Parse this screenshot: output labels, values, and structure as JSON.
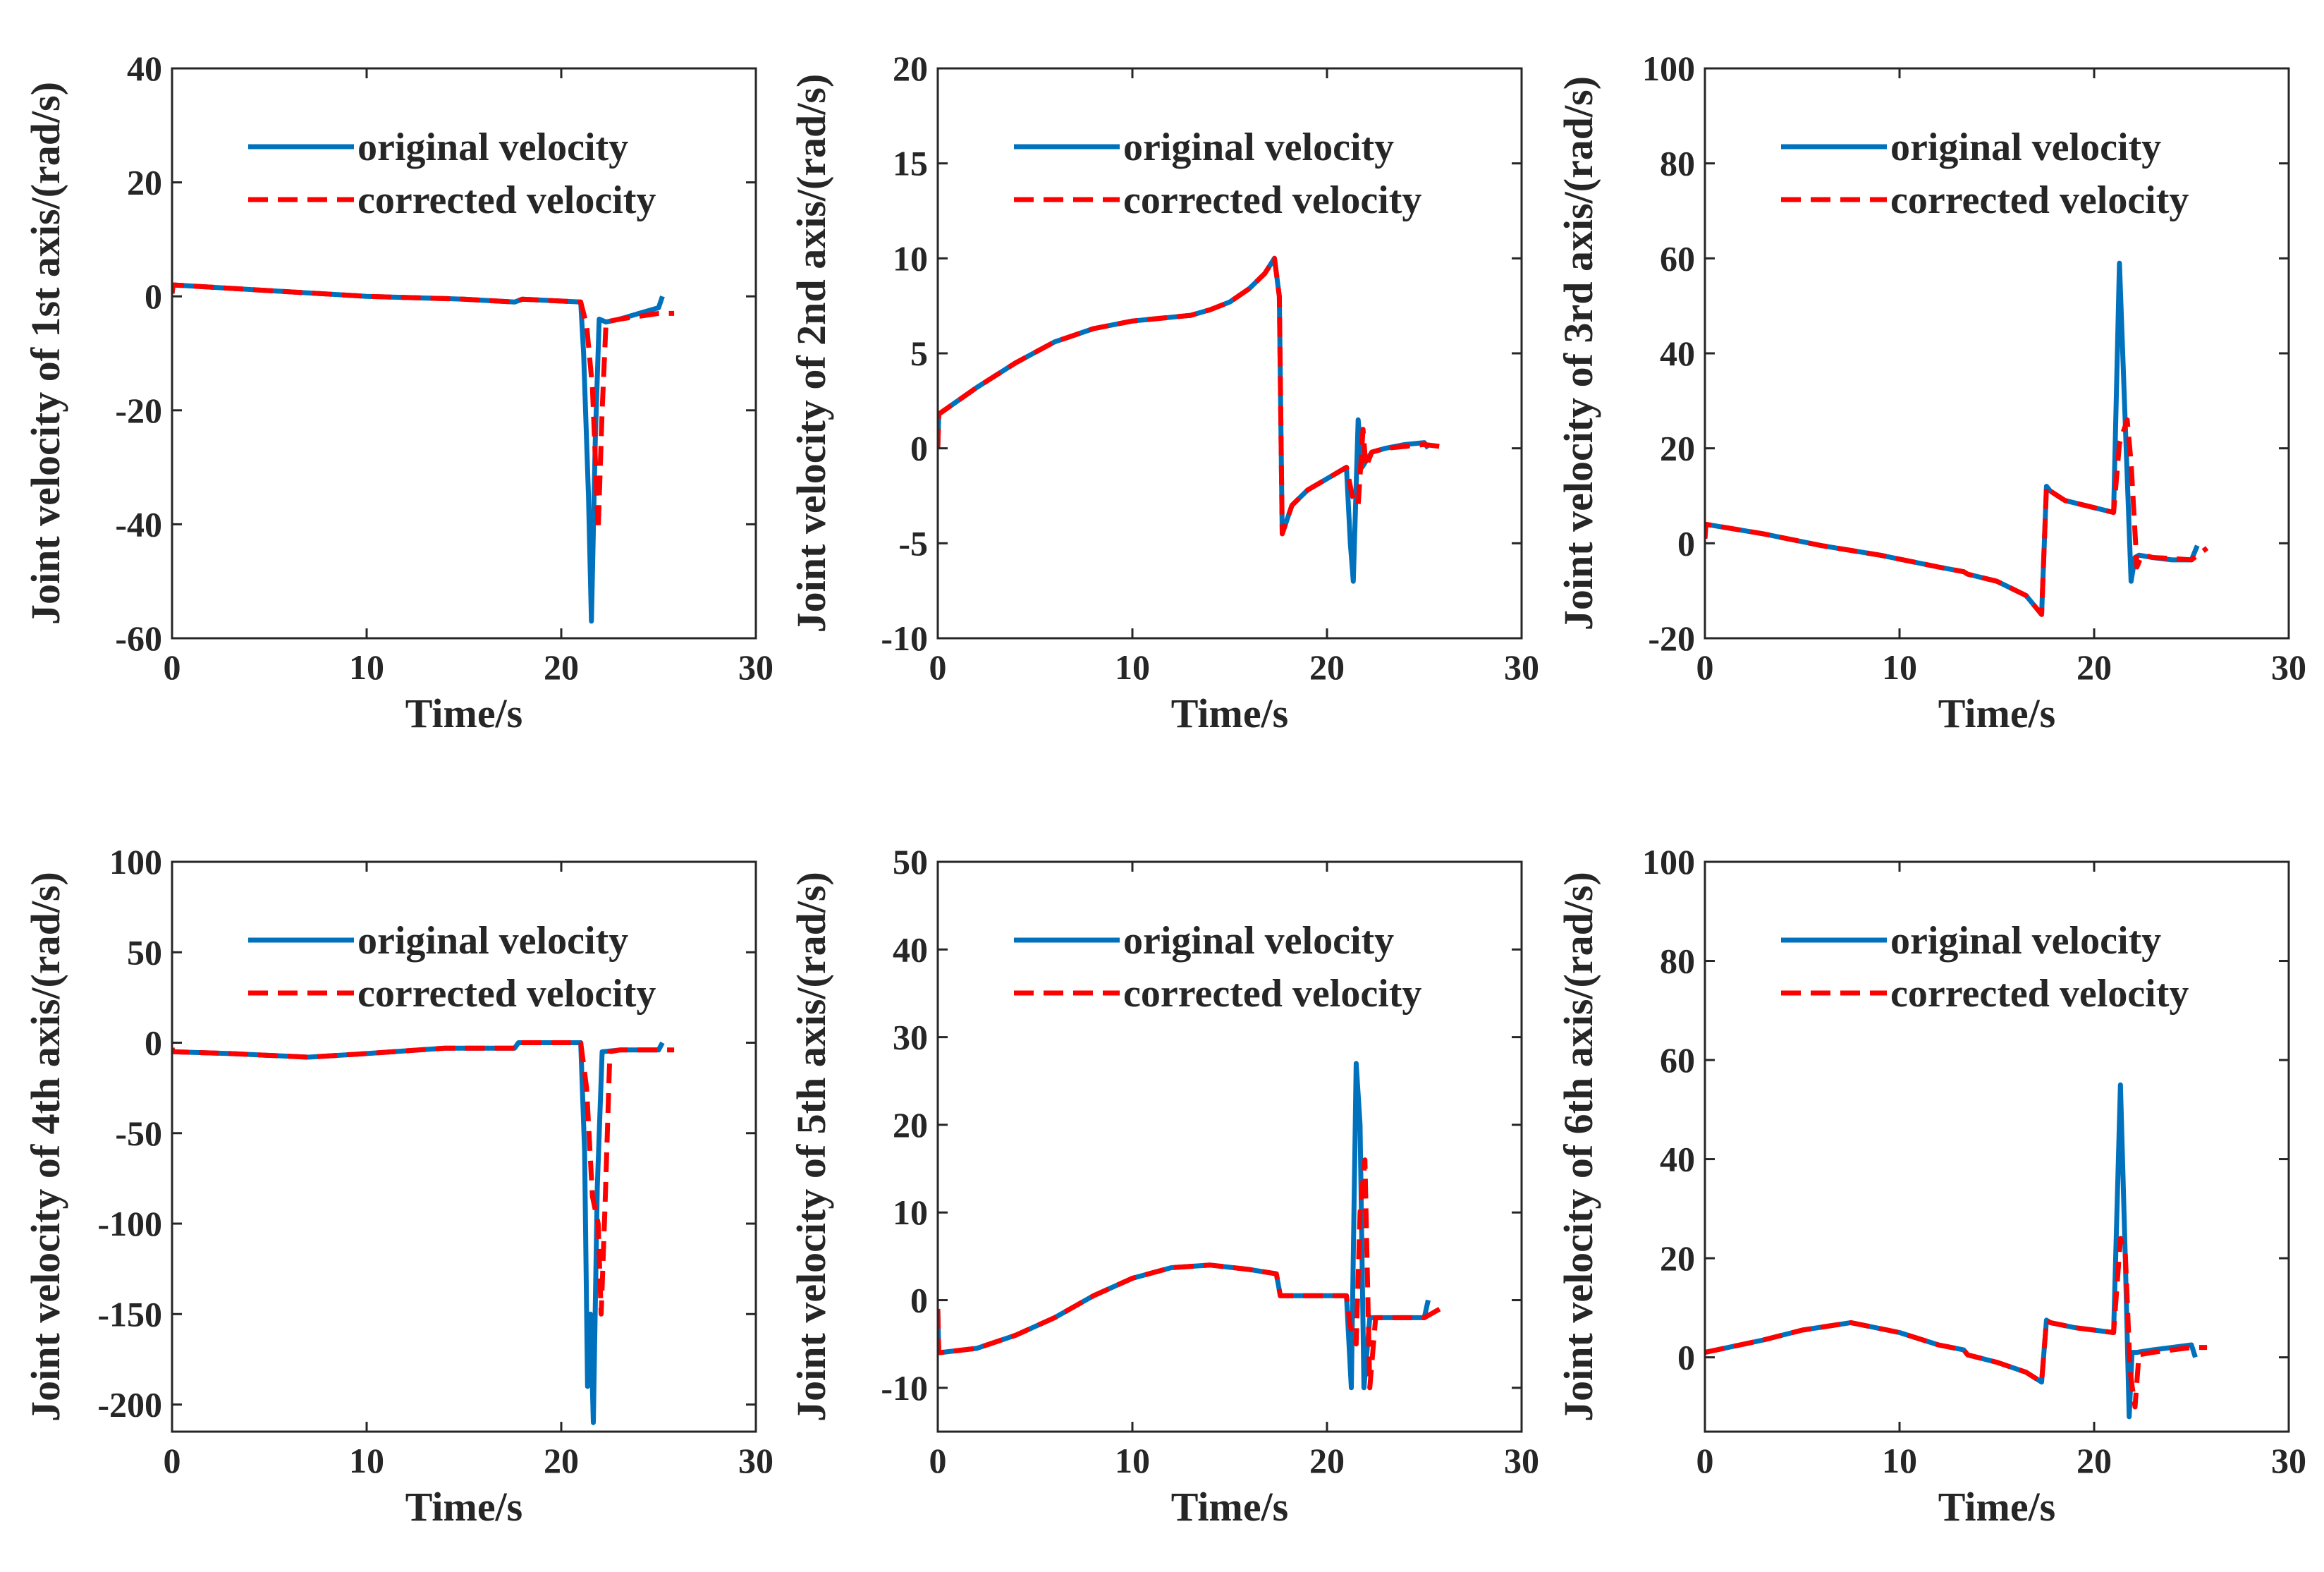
{
  "chart_data": [
    {
      "type": "line",
      "title": "",
      "xlabel": "Time/s",
      "ylabel": "Joint velocity of 1st axis/(rad/s)",
      "xlim": [
        0,
        30
      ],
      "ylim": [
        -60,
        40
      ],
      "xticks": [
        "0",
        "10",
        "20",
        "30"
      ],
      "yticks": [
        "-60",
        "-40",
        "-20",
        "0",
        "20",
        "40"
      ],
      "grid": false,
      "legend_position": "top-right",
      "series": [
        {
          "name": "original velocity",
          "color": "#0072BD",
          "style": "solid",
          "x": [
            0,
            0.05,
            5,
            10,
            15,
            17.6,
            18,
            21,
            21.15,
            21.4,
            21.55,
            21.75,
            21.95,
            22.3,
            23,
            24,
            25,
            25.2
          ],
          "y": [
            0.5,
            2,
            1,
            0,
            -0.5,
            -1,
            -0.5,
            -1,
            -10,
            -35,
            -57,
            -25,
            -4,
            -4.5,
            -4,
            -3,
            -2,
            0
          ]
        },
        {
          "name": "corrected velocity",
          "color": "#FF0000",
          "style": "dashed",
          "x": [
            0,
            0.05,
            5,
            10,
            15,
            17.6,
            18,
            21,
            21.3,
            21.6,
            21.9,
            22.1,
            22.3,
            23,
            24,
            25,
            25.8
          ],
          "y": [
            0.5,
            2,
            1,
            0,
            -0.5,
            -1,
            -0.5,
            -1,
            -5,
            -16,
            -41,
            -20,
            -4.5,
            -4,
            -3.5,
            -3,
            -3
          ]
        }
      ]
    },
    {
      "type": "line",
      "title": "",
      "xlabel": "Time/s",
      "ylabel": "Joint velocity of 2nd axis/(rad/s)",
      "xlim": [
        0,
        30
      ],
      "ylim": [
        -10,
        20
      ],
      "xticks": [
        "0",
        "10",
        "20",
        "30"
      ],
      "yticks": [
        "-10",
        "-5",
        "0",
        "5",
        "10",
        "15",
        "20"
      ],
      "grid": false,
      "legend_position": "top-right",
      "series": [
        {
          "name": "original velocity",
          "color": "#0072BD",
          "style": "solid",
          "x": [
            0,
            0.05,
            2,
            4,
            6,
            8,
            10,
            12,
            13,
            14,
            15,
            16,
            16.8,
            17.3,
            17.55,
            17.7,
            18.2,
            19,
            20,
            21,
            21.2,
            21.35,
            21.6,
            21.8,
            22.3,
            23,
            24,
            25,
            25.2
          ],
          "y": [
            0,
            1.8,
            3.2,
            4.5,
            5.6,
            6.3,
            6.7,
            6.9,
            7,
            7.3,
            7.7,
            8.4,
            9.2,
            10,
            8,
            -4.5,
            -3,
            -2.2,
            -1.6,
            -1,
            -5,
            -7,
            1.5,
            -1,
            -0.2,
            0,
            0.2,
            0.3,
            0
          ]
        },
        {
          "name": "corrected velocity",
          "color": "#FF0000",
          "style": "dashed",
          "x": [
            0,
            0.05,
            2,
            4,
            6,
            8,
            10,
            12,
            13,
            14,
            15,
            16,
            16.8,
            17.3,
            17.55,
            17.7,
            18.2,
            19,
            20,
            21,
            21.3,
            21.6,
            21.85,
            22,
            22.3,
            23,
            24,
            25,
            25.8
          ],
          "y": [
            0,
            1.8,
            3.2,
            4.5,
            5.6,
            6.3,
            6.7,
            6.9,
            7,
            7.3,
            7.7,
            8.4,
            9.2,
            10,
            8,
            -4.5,
            -3,
            -2.2,
            -1.6,
            -1,
            -2.5,
            -3,
            1,
            -1,
            -0.2,
            0,
            0.1,
            0.2,
            0.1
          ]
        }
      ]
    },
    {
      "type": "line",
      "title": "",
      "xlabel": "Time/s",
      "ylabel": "Joint velocity of 3rd axis/(rad/s)",
      "xlim": [
        0,
        30
      ],
      "ylim": [
        -20,
        100
      ],
      "xticks": [
        "0",
        "10",
        "20",
        "30"
      ],
      "yticks": [
        "-20",
        "0",
        "20",
        "40",
        "60",
        "80",
        "100"
      ],
      "grid": false,
      "legend_position": "top-right",
      "series": [
        {
          "name": "original velocity",
          "color": "#0072BD",
          "style": "solid",
          "x": [
            0,
            0.05,
            3,
            6,
            9,
            12,
            13.3,
            13.5,
            15,
            16.5,
            17.3,
            17.55,
            17.75,
            18.5,
            20,
            21,
            21.3,
            21.6,
            21.9,
            22.1,
            22.3,
            23,
            24,
            25,
            25.3
          ],
          "y": [
            1,
            4,
            2,
            -0.5,
            -2.5,
            -5,
            -6,
            -6.5,
            -8,
            -11,
            -15,
            12,
            11,
            9,
            7.5,
            6.5,
            59,
            25,
            -8,
            -3,
            -2.5,
            -3,
            -3.5,
            -3.5,
            -0.5
          ]
        },
        {
          "name": "corrected velocity",
          "color": "#FF0000",
          "style": "dashed",
          "x": [
            0,
            0.05,
            3,
            6,
            9,
            12,
            13.3,
            13.5,
            15,
            16.5,
            17.3,
            17.55,
            17.75,
            18.5,
            20,
            21,
            21.3,
            21.7,
            21.9,
            22.2,
            22.4,
            22.6,
            23,
            24,
            25,
            25.8
          ],
          "y": [
            1,
            4,
            2,
            -0.5,
            -2.5,
            -5,
            -6,
            -6.5,
            -8,
            -11,
            -15,
            12,
            11,
            9,
            7.5,
            6.5,
            21,
            26,
            17,
            -5,
            -3,
            -2.5,
            -3,
            -3.2,
            -3.5,
            -1
          ]
        }
      ]
    },
    {
      "type": "line",
      "title": "",
      "xlabel": "Time/s",
      "ylabel": "Joint velocity of 4th axis/(rad/s)",
      "xlim": [
        0,
        30
      ],
      "ylim": [
        -215,
        100
      ],
      "xticks": [
        "0",
        "10",
        "20",
        "30"
      ],
      "yticks": [
        "-200",
        "-150",
        "-100",
        "-50",
        "0",
        "50",
        "100"
      ],
      "grid": false,
      "legend_position": "top-right",
      "series": [
        {
          "name": "original velocity",
          "color": "#0072BD",
          "style": "solid",
          "x": [
            0,
            0.05,
            3,
            7,
            10,
            14,
            17.6,
            17.8,
            21,
            21.2,
            21.35,
            21.5,
            21.65,
            21.85,
            22.1,
            23,
            24,
            25,
            25.2
          ],
          "y": [
            -3,
            -5,
            -6,
            -8,
            -6,
            -3,
            -3,
            0,
            0,
            -60,
            -190,
            -150,
            -210,
            -80,
            -5,
            -4,
            -4,
            -4,
            0
          ]
        },
        {
          "name": "corrected velocity",
          "color": "#FF0000",
          "style": "dashed",
          "x": [
            0,
            0.05,
            3,
            7,
            10,
            14,
            17.6,
            17.8,
            21,
            21.3,
            21.6,
            21.9,
            22.05,
            22.25,
            22.5,
            23,
            24,
            25,
            25.8
          ],
          "y": [
            -3,
            -5,
            -6,
            -8,
            -6,
            -3,
            -3,
            0,
            0,
            -25,
            -85,
            -100,
            -150,
            -90,
            -5,
            -4,
            -4,
            -4,
            -4
          ]
        }
      ]
    },
    {
      "type": "line",
      "title": "",
      "xlabel": "Time/s",
      "ylabel": "Joint velocity of 5th axis/(rad/s)",
      "xlim": [
        0,
        30
      ],
      "ylim": [
        -15,
        50
      ],
      "xticks": [
        "0",
        "10",
        "20",
        "30"
      ],
      "yticks": [
        "-10",
        "0",
        "10",
        "20",
        "30",
        "40",
        "50"
      ],
      "grid": false,
      "legend_position": "top-right",
      "series": [
        {
          "name": "original velocity",
          "color": "#0072BD",
          "style": "solid",
          "x": [
            0,
            0.05,
            2,
            4,
            6,
            8,
            10,
            12,
            14,
            16,
            17.4,
            17.6,
            20,
            21,
            21.25,
            21.5,
            21.7,
            21.9,
            22.2,
            23,
            24,
            25,
            25.2
          ],
          "y": [
            -1,
            -6,
            -5.5,
            -4,
            -2,
            0.5,
            2.5,
            3.7,
            4,
            3.5,
            3,
            0.5,
            0.5,
            0.5,
            -10,
            27,
            20,
            -10,
            -2,
            -2,
            -2,
            -2,
            0
          ]
        },
        {
          "name": "corrected velocity",
          "color": "#FF0000",
          "style": "dashed",
          "x": [
            0,
            0.05,
            2,
            4,
            6,
            8,
            10,
            12,
            14,
            16,
            17.4,
            17.6,
            20,
            21,
            21.2,
            21.5,
            21.7,
            21.95,
            22.2,
            22.5,
            23,
            24,
            25,
            25.8
          ],
          "y": [
            -1,
            -6,
            -5.5,
            -4,
            -2,
            0.5,
            2.5,
            3.7,
            4,
            3.5,
            3,
            0.5,
            0.5,
            0.5,
            -3,
            -5,
            10,
            16,
            -10,
            -2,
            -2,
            -2,
            -2,
            -1
          ]
        }
      ]
    },
    {
      "type": "line",
      "title": "",
      "xlabel": "Time/s",
      "ylabel": "Joint velocity of 6th axis/(rad/s)",
      "xlim": [
        0,
        30
      ],
      "ylim": [
        -15,
        100
      ],
      "xticks": [
        "0",
        "10",
        "20",
        "30"
      ],
      "yticks": [
        "0",
        "20",
        "40",
        "60",
        "80",
        "100"
      ],
      "grid": false,
      "legend_position": "top-right",
      "series": [
        {
          "name": "original velocity",
          "color": "#0072BD",
          "style": "solid",
          "x": [
            0,
            3,
            5,
            7.5,
            10,
            12,
            13.3,
            13.5,
            15,
            16.5,
            17.3,
            17.55,
            17.75,
            19,
            21,
            21.35,
            21.6,
            21.8,
            21.95,
            22.2,
            23,
            24,
            25,
            25.2
          ],
          "y": [
            1,
            3.5,
            5.5,
            7,
            5,
            2.5,
            1.5,
            0.5,
            -1,
            -3,
            -5,
            7.5,
            7,
            6,
            5,
            55,
            20,
            -12,
            1,
            1,
            1.5,
            2,
            2.5,
            0
          ]
        },
        {
          "name": "corrected velocity",
          "color": "#FF0000",
          "style": "dashed",
          "x": [
            0,
            3,
            5,
            7.5,
            10,
            12,
            13.3,
            13.5,
            15,
            16.5,
            17.3,
            17.55,
            17.75,
            19,
            21,
            21.35,
            21.6,
            21.85,
            22.1,
            22.3,
            23,
            24,
            25,
            25.8
          ],
          "y": [
            1,
            3.5,
            5.5,
            7,
            5,
            2.5,
            1.5,
            0.5,
            -1,
            -3,
            -5,
            7.5,
            7,
            6,
            5,
            24,
            21,
            -3,
            -10,
            0.5,
            1,
            1.5,
            2,
            2
          ]
        }
      ]
    }
  ]
}
